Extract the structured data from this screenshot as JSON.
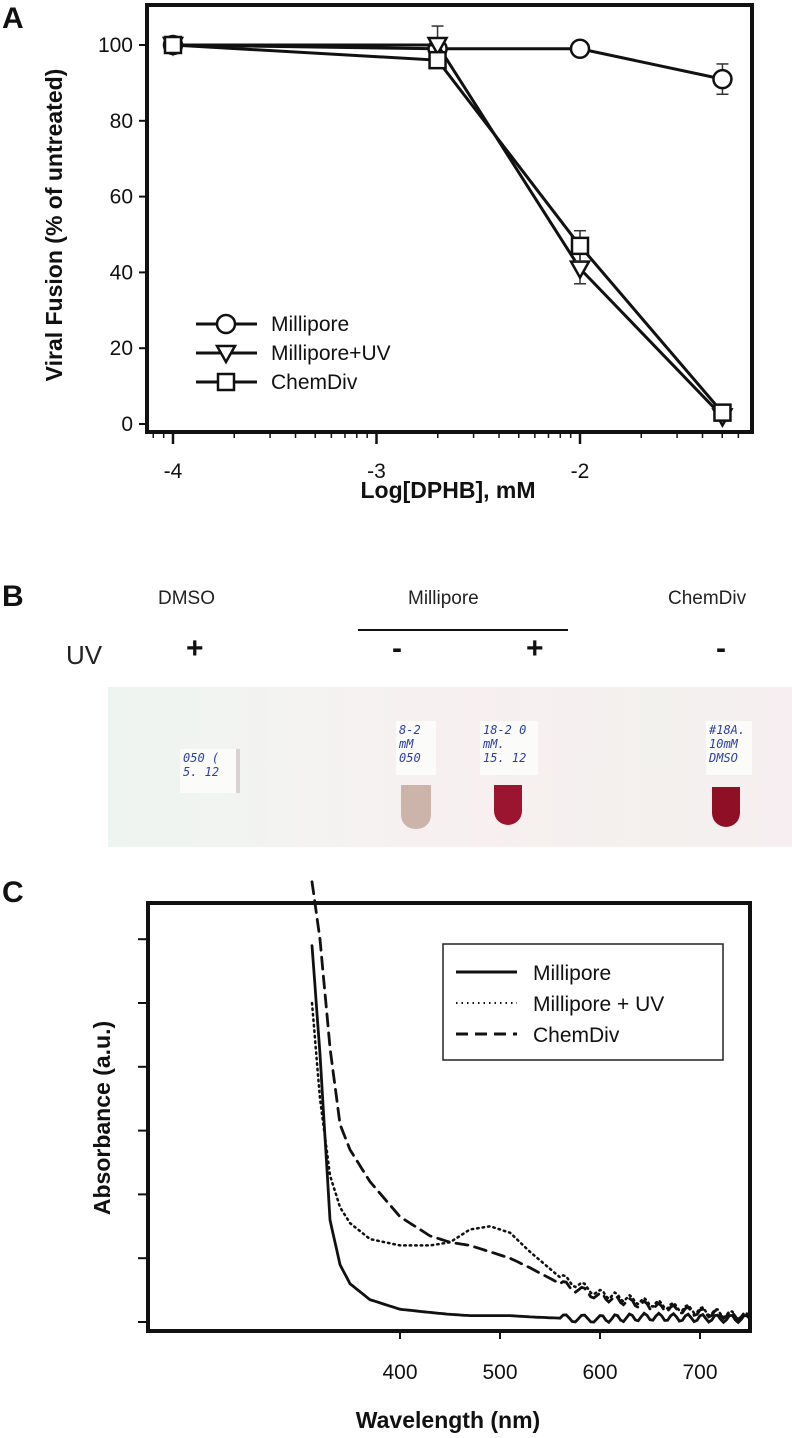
{
  "figure": {
    "panels": {
      "A": {
        "letter": "A"
      },
      "B": {
        "letter": "B"
      },
      "C": {
        "letter": "C"
      }
    }
  },
  "panelB": {
    "row_label": "UV",
    "groups": [
      {
        "name": "DMSO"
      },
      {
        "name": "Millipore"
      },
      {
        "name": "ChemDiv"
      }
    ],
    "samples": [
      {
        "group": "DMSO",
        "uv": "+",
        "color": "none",
        "label_lines": [
          "050 (",
          "5. 12"
        ]
      },
      {
        "group": "Millipore",
        "uv": "-",
        "color": "#c9a79c",
        "label_lines": [
          "8-2",
          "mM",
          "050"
        ]
      },
      {
        "group": "Millipore",
        "uv": "+",
        "color": "#9b1530",
        "label_lines": [
          "18-2 0",
          "mM.",
          "15. 12"
        ]
      },
      {
        "group": "ChemDiv",
        "uv": "-",
        "color": "#8f1025",
        "label_lines": [
          "#18A.",
          "10mM",
          "DMSO"
        ]
      }
    ],
    "signs": [
      "+",
      "-",
      "+",
      "-"
    ]
  },
  "chart_data": [
    {
      "panel": "A",
      "type": "line",
      "title": "",
      "xlabel": "Log[DPHB], mM",
      "ylabel": "Viral Fusion (% of untreated)",
      "xlim": [
        -4.15,
        -1.1
      ],
      "ylim": [
        0,
        110
      ],
      "x_ticks": [
        -4,
        -3,
        -2
      ],
      "x_tick_labels": [
        "-4",
        "-3",
        "-2"
      ],
      "y_ticks": [
        0,
        20,
        40,
        60,
        80,
        100
      ],
      "y_tick_labels": [
        "0",
        "20",
        "40",
        "60",
        "80",
        "100"
      ],
      "grid": false,
      "legend_position": "lower left",
      "x": [
        -4,
        -2.7,
        -2,
        -1.3
      ],
      "series": [
        {
          "name": "Millipore",
          "marker": "circle",
          "values": [
            100,
            99,
            99,
            91
          ],
          "errors": [
            0,
            0,
            0,
            4
          ]
        },
        {
          "name": "Millipore+UV",
          "marker": "triangle-down",
          "values": [
            100,
            100,
            41,
            2
          ],
          "errors": [
            0,
            5,
            4,
            0
          ]
        },
        {
          "name": "ChemDiv",
          "marker": "square",
          "values": [
            100,
            96,
            47,
            3
          ],
          "errors": [
            0,
            0,
            4,
            0
          ]
        }
      ]
    },
    {
      "panel": "C",
      "type": "line",
      "title": "",
      "xlabel": "Wavelength (nm)",
      "ylabel": "Absorbance (a.u.)",
      "xlim": [
        310,
        755
      ],
      "ylim": [
        0,
        7
      ],
      "x_ticks": [
        400,
        500,
        600,
        700
      ],
      "x_tick_labels": [
        "400",
        "500",
        "600",
        "700"
      ],
      "y_ticks_count": 7,
      "y_tick_labels": [],
      "grid": false,
      "legend_position": "upper right",
      "x": [
        312,
        320,
        330,
        340,
        350,
        370,
        400,
        430,
        450,
        470,
        490,
        510,
        530,
        560,
        600,
        650,
        700,
        750
      ],
      "series": [
        {
          "name": "Millipore",
          "linestyle": "solid",
          "values": [
            5.9,
            4.2,
            1.6,
            0.9,
            0.6,
            0.35,
            0.2,
            0.15,
            0.12,
            0.1,
            0.1,
            0.1,
            0.08,
            0.06,
            0.05,
            0.08,
            0.06,
            0.05
          ]
        },
        {
          "name": "Millipore + UV",
          "linestyle": "dotted",
          "values": [
            5.0,
            3.5,
            2.3,
            1.8,
            1.55,
            1.3,
            1.2,
            1.2,
            1.25,
            1.45,
            1.5,
            1.4,
            1.1,
            0.7,
            0.45,
            0.3,
            0.18,
            0.08
          ]
        },
        {
          "name": "ChemDiv",
          "linestyle": "dashed",
          "values": [
            6.9,
            6.0,
            4.3,
            3.1,
            2.7,
            2.2,
            1.65,
            1.35,
            1.25,
            1.2,
            1.1,
            1.0,
            0.85,
            0.6,
            0.4,
            0.25,
            0.15,
            0.08
          ]
        }
      ]
    }
  ]
}
